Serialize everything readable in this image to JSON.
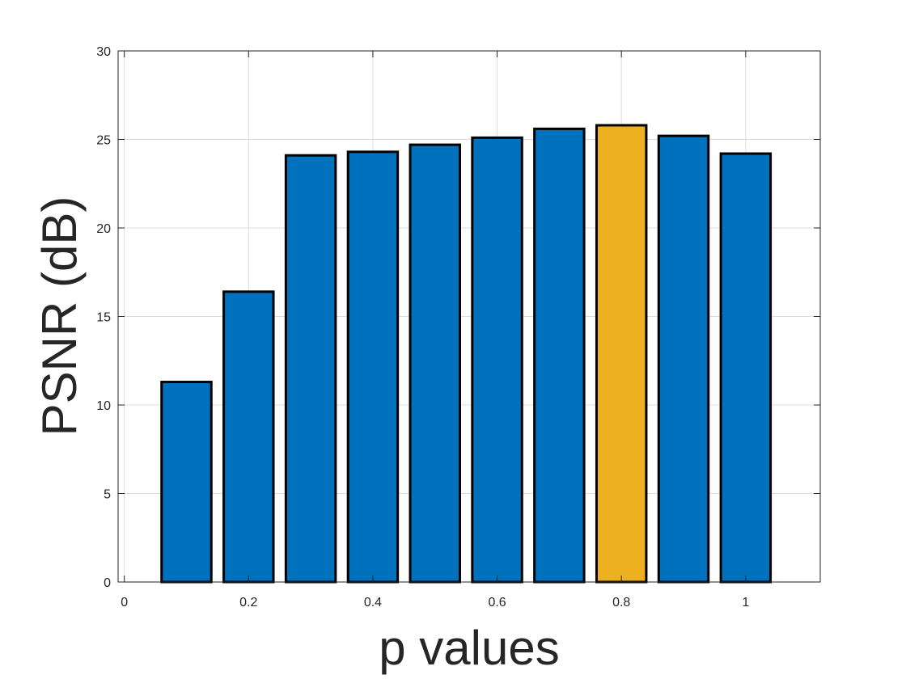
{
  "chart_data": {
    "type": "bar",
    "title": "",
    "xlabel": "p values",
    "ylabel": "PSNR (dB)",
    "x": [
      0.1,
      0.2,
      0.3,
      0.4,
      0.5,
      0.6,
      0.7,
      0.8,
      0.9,
      1.0
    ],
    "values": [
      11.3,
      16.4,
      24.1,
      24.3,
      24.7,
      25.1,
      25.6,
      25.8,
      25.2,
      24.2
    ],
    "bar_colors": [
      "#0072bd",
      "#0072bd",
      "#0072bd",
      "#0072bd",
      "#0072bd",
      "#0072bd",
      "#0072bd",
      "#edb120",
      "#0072bd",
      "#0072bd"
    ],
    "highlight_x": 0.8,
    "xlim": [
      -0.01,
      1.12
    ],
    "ylim": [
      0,
      30
    ],
    "xticks": [
      0,
      0.2,
      0.4,
      0.6,
      0.8,
      1
    ],
    "xtick_labels": [
      "0",
      "0.2",
      "0.4",
      "0.6",
      "0.8",
      "1"
    ],
    "yticks": [
      0,
      5,
      10,
      15,
      20,
      25,
      30
    ],
    "ytick_labels": [
      "0",
      "5",
      "10",
      "15",
      "20",
      "25",
      "30"
    ],
    "grid": true,
    "legend": "none",
    "colors": {
      "bar_default": "#0072bd",
      "bar_highlight": "#edb120",
      "bar_edge": "#000000",
      "grid": "#dcdcdc",
      "axis": "#262626"
    }
  }
}
